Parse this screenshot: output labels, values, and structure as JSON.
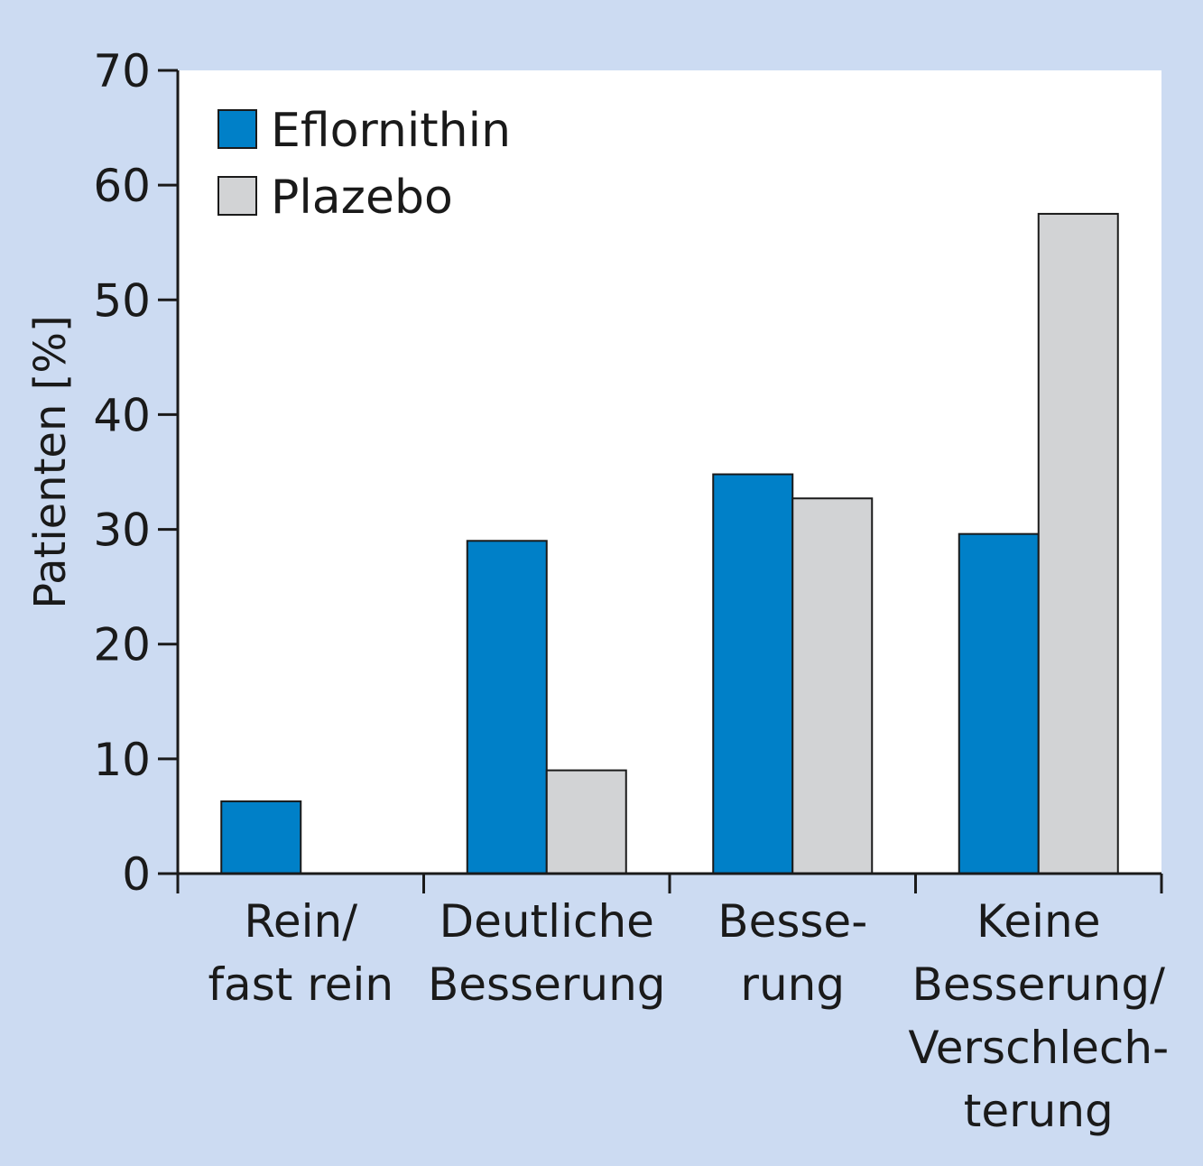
{
  "colors": {
    "page_background": "#ccdbf2",
    "plot_background": "#ffffff",
    "eflornithin": "#0080c8",
    "plazebo": "#d2d3d5",
    "axis": "#1a1a1a"
  },
  "chart_data": {
    "type": "bar",
    "ylabel": "Patienten [%]",
    "ylim": [
      0,
      70
    ],
    "yticks": [
      0,
      10,
      20,
      30,
      40,
      50,
      60,
      70
    ],
    "grid": false,
    "legend_position": "top-left",
    "categories": [
      [
        "Rein/",
        "fast rein"
      ],
      [
        "Deutliche",
        "Besserung"
      ],
      [
        "Besse-",
        "rung"
      ],
      [
        "Keine",
        "Besserung/",
        "Verschlech-",
        "terung"
      ]
    ],
    "series": [
      {
        "name": "Eflornithin",
        "color": "#0080c8",
        "values": [
          6.3,
          29,
          34.8,
          29.6
        ]
      },
      {
        "name": "Plazebo",
        "color": "#d2d3d5",
        "values": [
          0,
          9,
          32.7,
          57.5
        ]
      }
    ]
  }
}
